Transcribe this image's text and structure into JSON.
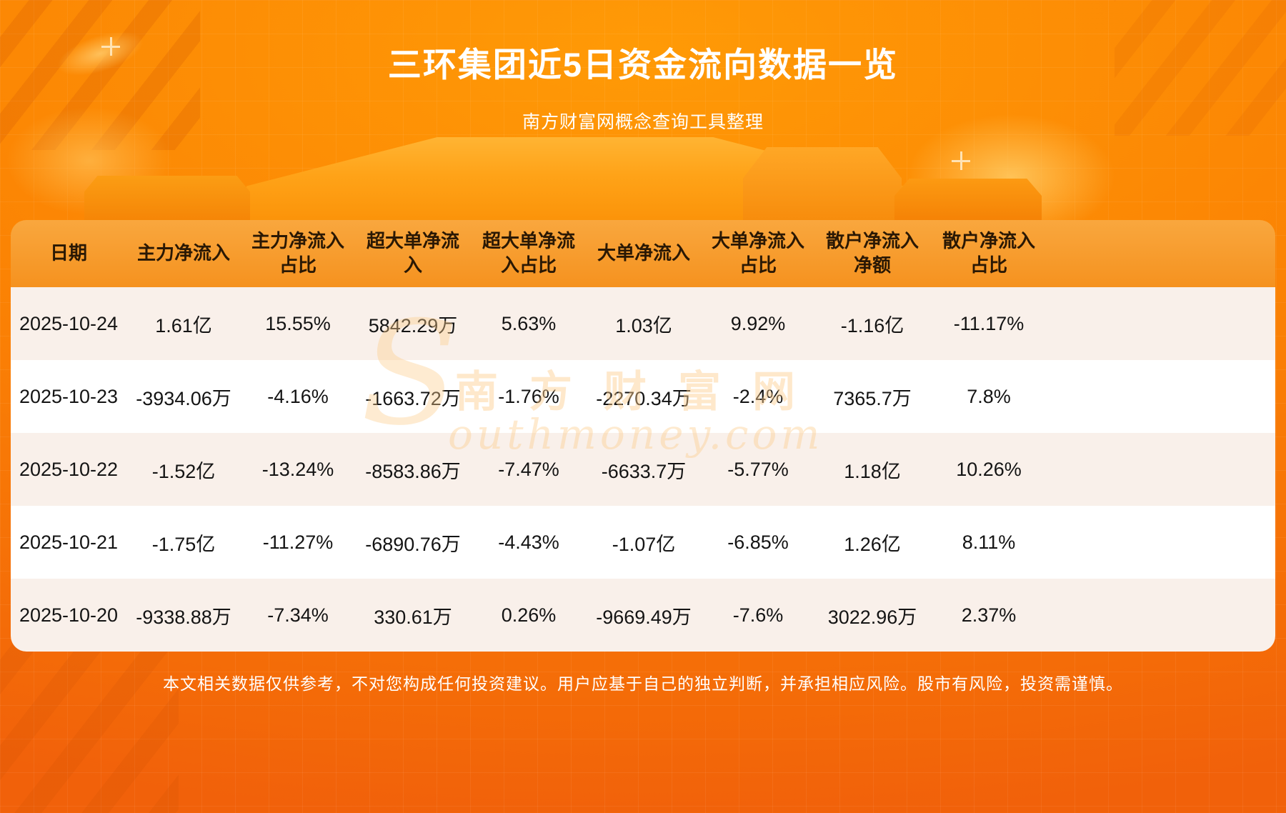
{
  "page": {
    "title": "三环集团近5日资金流向数据一览",
    "subtitle": "南方财富网概念查询工具整理",
    "footer": "本文相关数据仅供参考，不对您构成任何投资建议。用户应基于自己的独立判断，并承担相应风险。股市有风险，投资需谨慎。",
    "watermark_s": "S",
    "watermark_cn": "南方财富网",
    "watermark_en": "outhmoney.com"
  },
  "colors": {
    "background_orange": "#fb8304",
    "header_band": "#f5921f",
    "row_alt": "#f9f0ea",
    "row_white": "#ffffff",
    "text_dark": "#141414",
    "text_white": "#ffffff"
  },
  "chart_data": {
    "type": "table",
    "title": "三环集团近5日资金流向数据一览",
    "columns": [
      "日期",
      "主力净流入",
      "主力净流入\n占比",
      "超大单净流\n入",
      "超大单净流\n入占比",
      "大单净流入",
      "大单净流入\n占比",
      "散户净流入\n净额",
      "散户净流入\n占比"
    ],
    "rows": [
      [
        "2025-10-24",
        "1.61亿",
        "15.55%",
        "5842.29万",
        "5.63%",
        "1.03亿",
        "9.92%",
        "-1.16亿",
        "-11.17%"
      ],
      [
        "2025-10-23",
        "-3934.06万",
        "-4.16%",
        "-1663.72万",
        "-1.76%",
        "-2270.34万",
        "-2.4%",
        "7365.7万",
        "7.8%"
      ],
      [
        "2025-10-22",
        "-1.52亿",
        "-13.24%",
        "-8583.86万",
        "-7.47%",
        "-6633.7万",
        "-5.77%",
        "1.18亿",
        "10.26%"
      ],
      [
        "2025-10-21",
        "-1.75亿",
        "-11.27%",
        "-6890.76万",
        "-4.43%",
        "-1.07亿",
        "-6.85%",
        "1.26亿",
        "8.11%"
      ],
      [
        "2025-10-20",
        "-9338.88万",
        "-7.34%",
        "330.61万",
        "0.26%",
        "-9669.49万",
        "-7.6%",
        "3022.96万",
        "2.37%"
      ]
    ]
  }
}
